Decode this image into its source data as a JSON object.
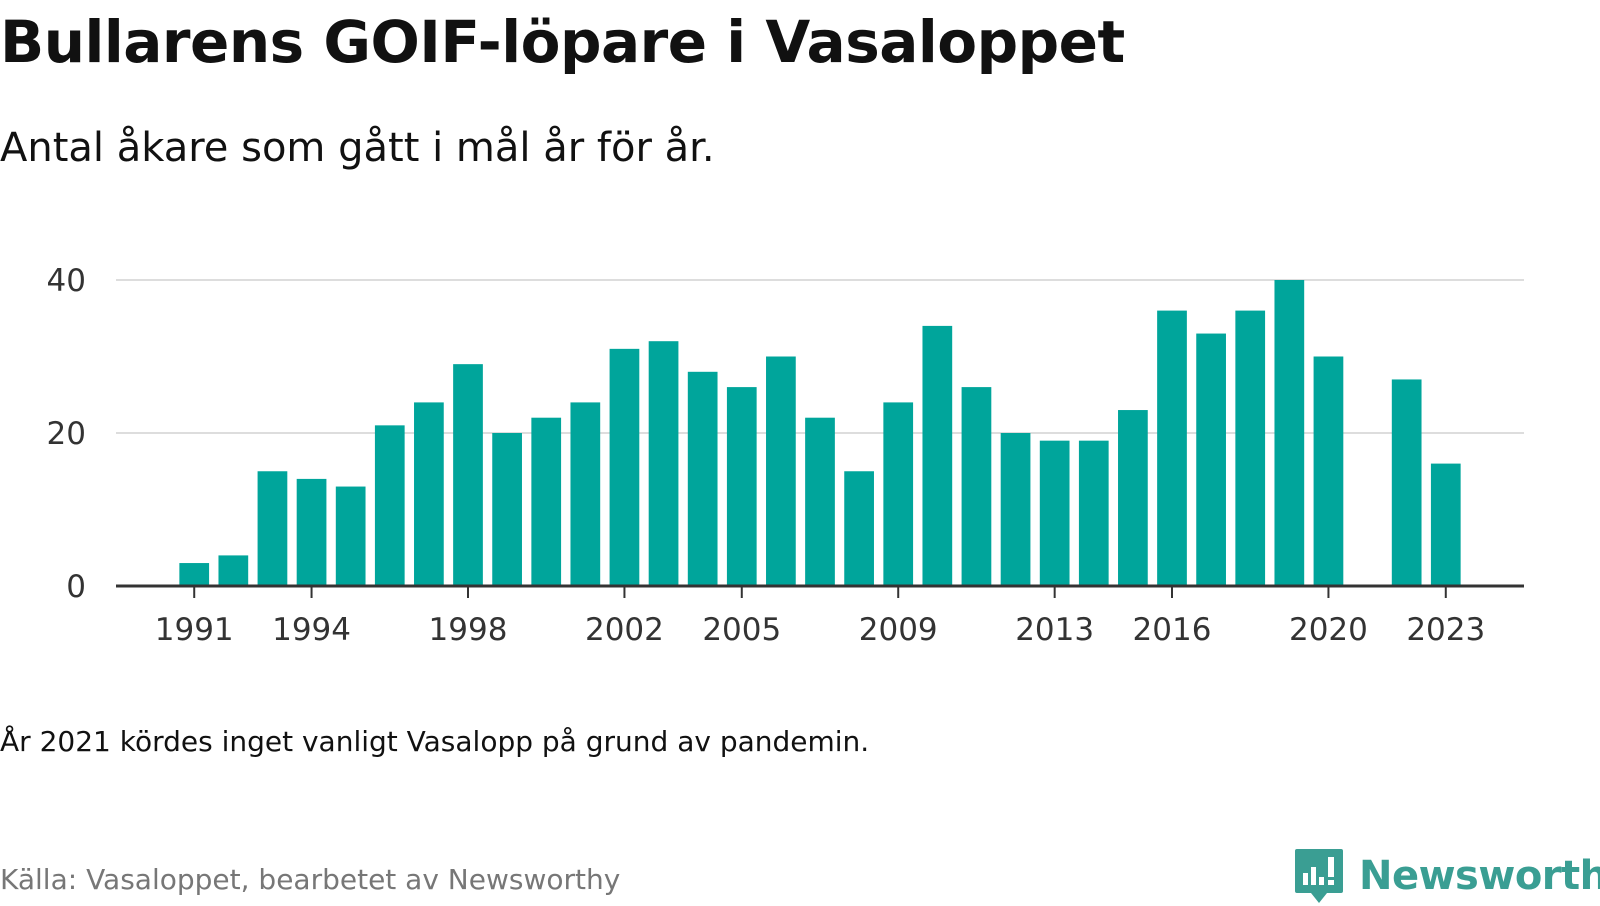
{
  "title": "Bullarens GOIF-löpare i Vasaloppet",
  "subtitle": "Antal åkare som gått i mål år för år.",
  "note": "År 2021 kördes inget vanligt Vasalopp på grund av pandemin.",
  "source": "Källa: Vasaloppet, bearbetet av Newsworthy",
  "logo": {
    "text": "Newsworthy",
    "icon": "newsworthy-logo-icon",
    "color": "#3a9e93"
  },
  "colors": {
    "bar": "#00a59b",
    "grid": "#dddddd",
    "axis": "#333333"
  },
  "chart_data": {
    "type": "bar",
    "x": [
      1991,
      1992,
      1993,
      1994,
      1995,
      1996,
      1997,
      1998,
      1999,
      2000,
      2001,
      2002,
      2003,
      2004,
      2005,
      2006,
      2007,
      2008,
      2009,
      2010,
      2011,
      2012,
      2013,
      2014,
      2015,
      2016,
      2017,
      2018,
      2019,
      2020,
      2021,
      2022,
      2023
    ],
    "values": [
      3,
      4,
      15,
      14,
      13,
      21,
      24,
      29,
      20,
      22,
      24,
      31,
      32,
      28,
      26,
      30,
      22,
      15,
      24,
      34,
      26,
      20,
      19,
      19,
      23,
      36,
      33,
      36,
      40,
      30,
      null,
      27,
      16
    ],
    "xlim": [
      1989,
      2025
    ],
    "ylim": [
      0,
      40
    ],
    "yticks": [
      0,
      20,
      40
    ],
    "xticks": [
      1991,
      1994,
      1998,
      2002,
      2005,
      2009,
      2013,
      2016,
      2020,
      2023
    ],
    "grid": true,
    "xlabel": "",
    "ylabel": ""
  }
}
